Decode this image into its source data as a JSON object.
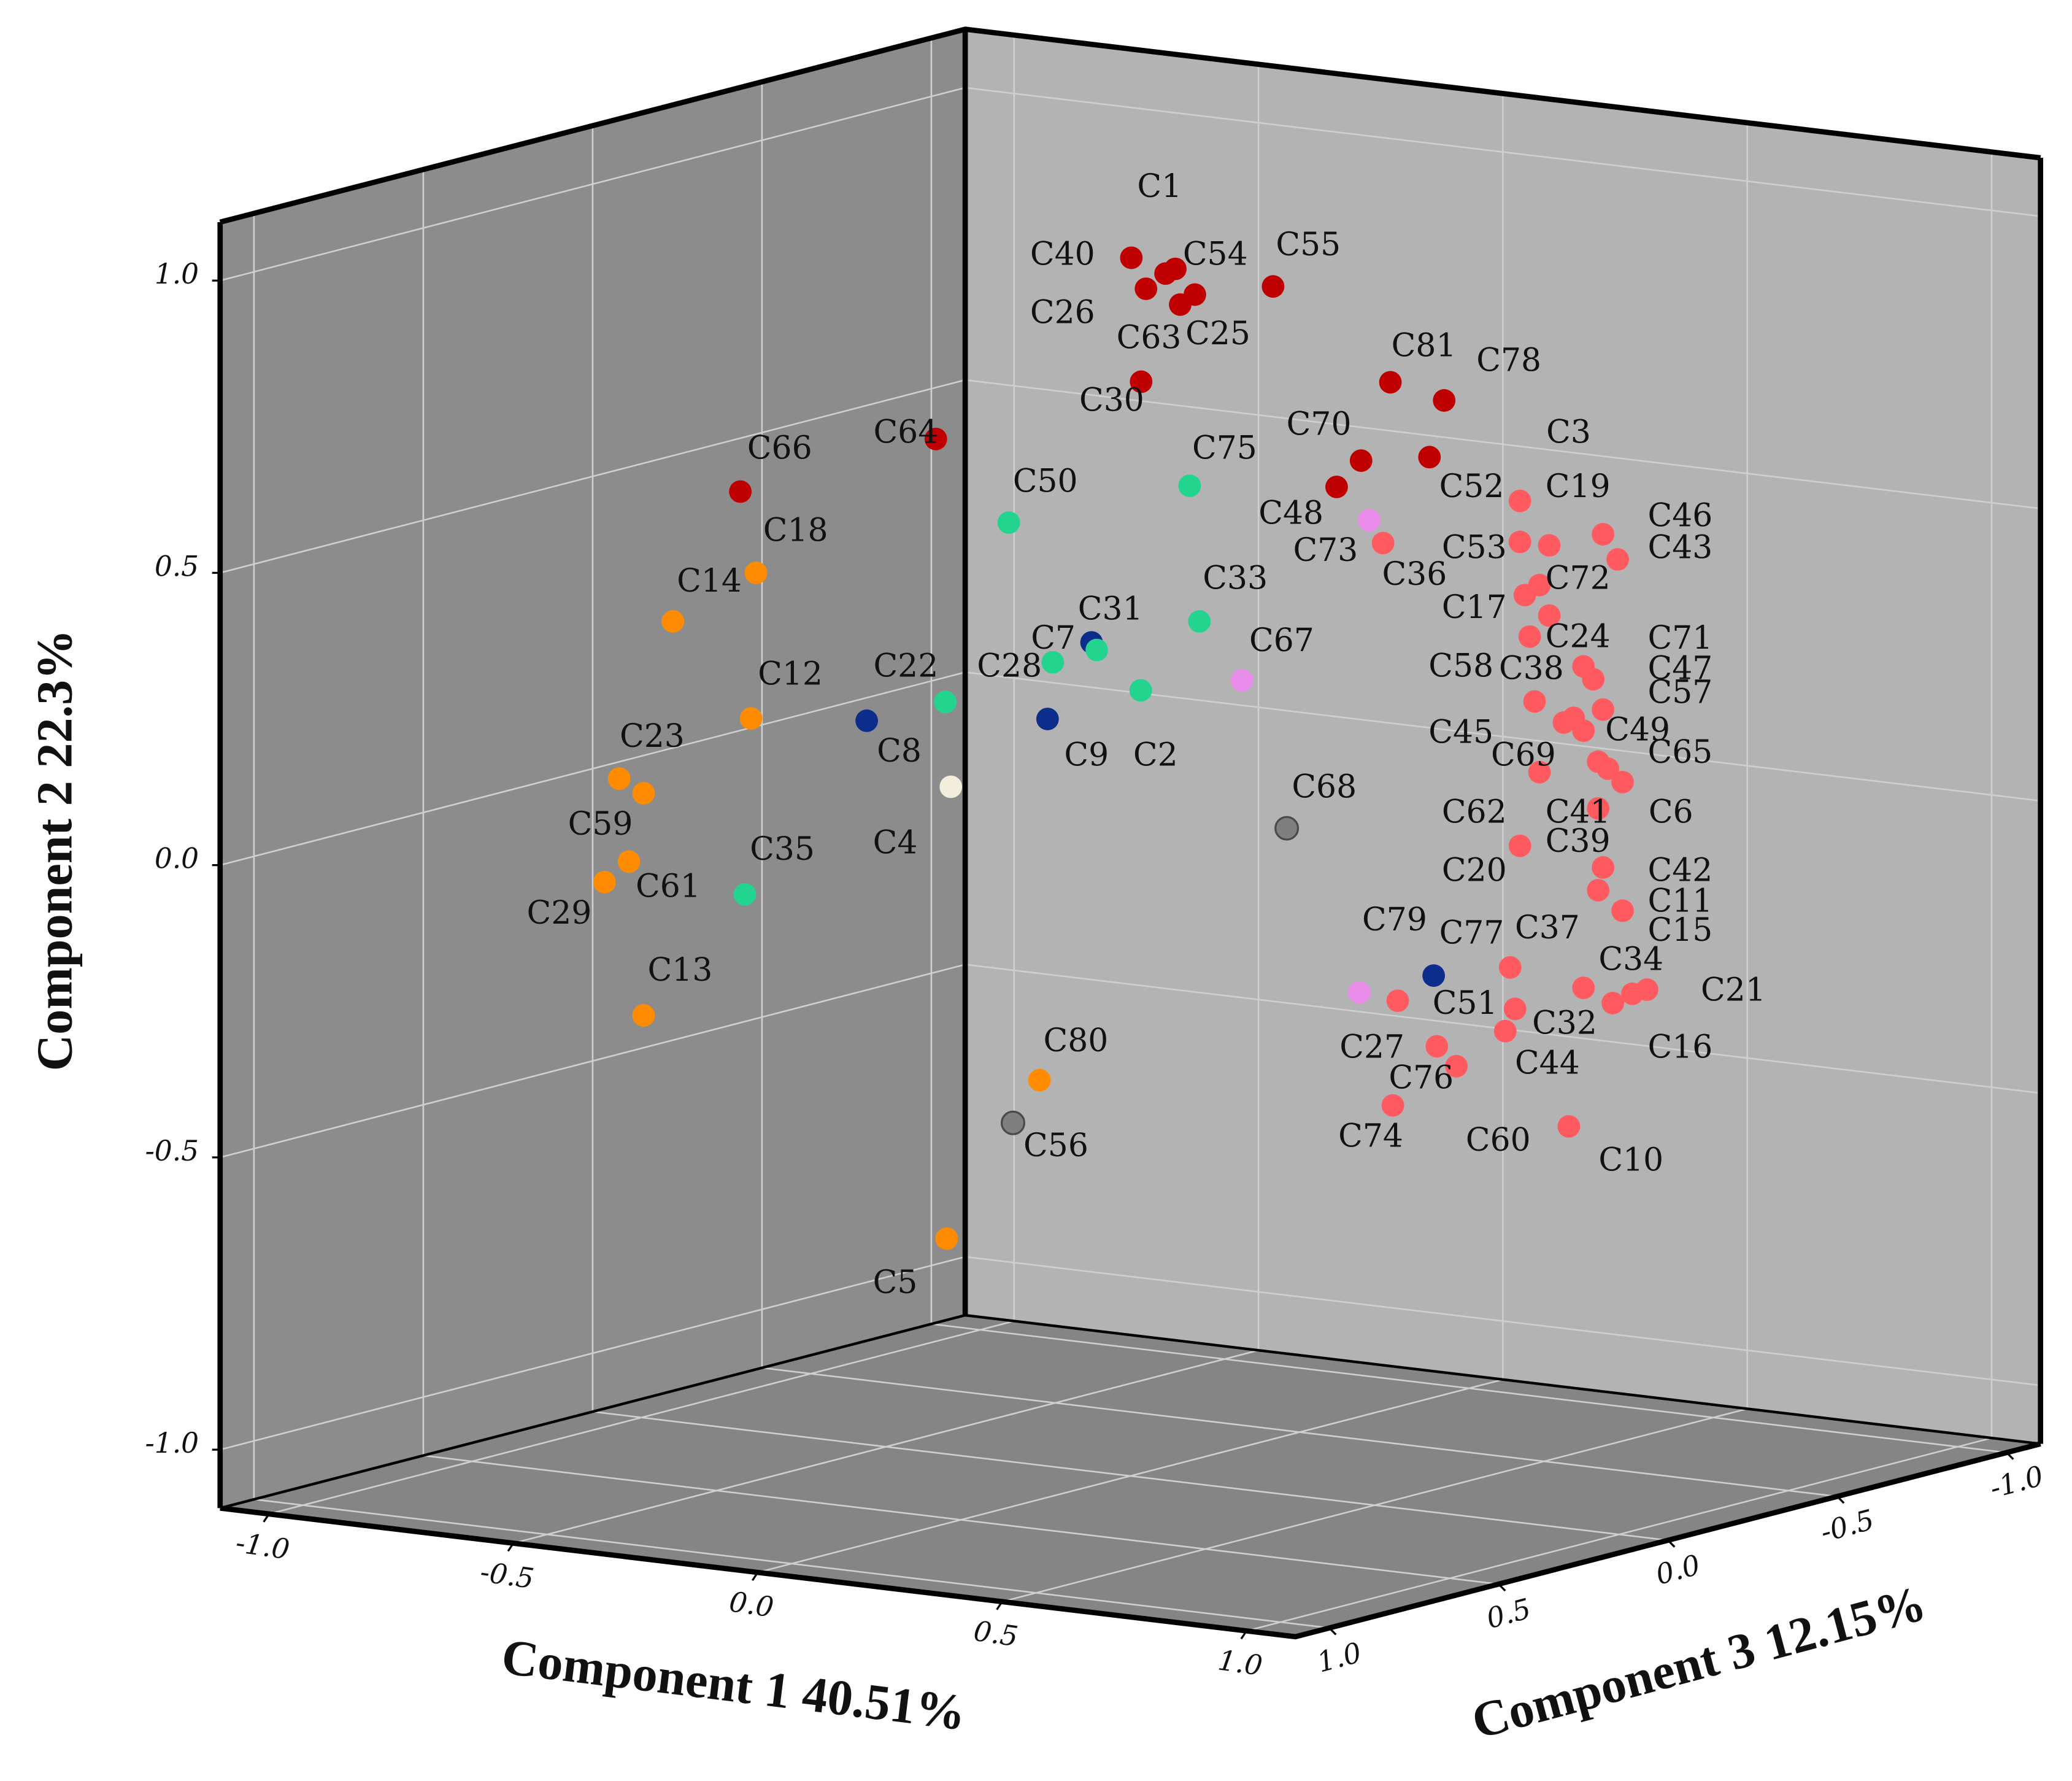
{
  "chart_data": {
    "type": "scatter3d",
    "xlabel": "Component 1 40.51%",
    "ylabel": "Component 2 22.3%",
    "zlabel": "Component 3 12.15%",
    "xlim": [
      -1.1,
      1.1
    ],
    "ylim": [
      -1.1,
      1.1
    ],
    "zlim": [
      -1.1,
      1.1
    ],
    "xticks": [
      {
        "value": -1,
        "label": "-1.0"
      },
      -0.5,
      {
        "value": 0,
        "label": "0.0"
      },
      0.5,
      {
        "value": 1,
        "label": "1.0"
      }
    ],
    "yticks": [
      {
        "value": -1,
        "label": "-1.0"
      },
      -0.5,
      {
        "value": 0,
        "label": "0.0"
      },
      0.5,
      {
        "value": 1,
        "label": "1.0"
      }
    ],
    "zticks": [
      {
        "value": -1,
        "label": "-1.0"
      },
      -0.5,
      {
        "value": 0,
        "label": "0.0"
      },
      0.5,
      {
        "value": 1,
        "label": "1.0"
      }
    ],
    "grid": true,
    "series": [
      {
        "color": "#c00000",
        "labels": [
          "C1",
          "C40",
          "C54",
          "C26",
          "C63",
          "C25",
          "C55",
          "C30",
          "C81",
          "C78",
          "C70",
          "C3",
          "C48",
          "C64",
          "C66"
        ],
        "x": [
          0.3,
          0.21,
          0.28,
          0.24,
          0.31,
          0.34,
          0.5,
          0.23,
          0.74,
          0.85,
          0.68,
          0.82,
          0.63,
          -0.19,
          -0.59
        ],
        "y": [
          1.04,
          1.05,
          1.03,
          1.0,
          0.98,
          1.0,
          1.03,
          0.84,
          0.89,
          0.87,
          0.75,
          0.77,
          0.7,
          0.7,
          0.57
        ],
        "z": [
          0.3,
          0.3,
          0.3,
          0.3,
          0.3,
          0.3,
          0.3,
          0.3,
          0.3,
          0.3,
          0.3,
          0.3,
          0.3,
          0.3,
          0.3
        ]
      },
      {
        "color": "#ff5a5f",
        "labels": [
          "C52",
          "C19",
          "C46",
          "C43",
          "C53",
          "C36",
          "C72",
          "C17",
          "C24",
          "C58",
          "C71",
          "C47",
          "C38",
          "C57",
          "C45",
          "C49",
          "C69",
          "C65",
          "C6",
          "C41",
          "C62",
          "C39",
          "C20",
          "C42",
          "C11",
          "C15",
          "C37",
          "C34",
          "C21",
          "C16",
          "C51",
          "C32",
          "C27",
          "C44",
          "C76",
          "C74",
          "C60",
          "C10"
        ],
        "x": [
          0.52,
          0.58,
          0.69,
          0.72,
          0.52,
          0.24,
          0.56,
          0.53,
          0.58,
          0.54,
          0.65,
          0.67,
          0.55,
          0.69,
          0.61,
          0.65,
          0.56,
          0.7,
          0.73,
          0.68,
          0.68,
          0.63,
          0.52,
          0.69,
          0.68,
          0.73,
          0.5,
          0.65,
          0.78,
          0.75,
          0.51,
          0.49,
          0.35,
          0.39,
          0.27,
          0.26,
          0.71,
          0.62
        ],
        "y": [
          0.56,
          0.49,
          0.52,
          0.48,
          0.49,
          0.46,
          0.42,
          0.4,
          0.37,
          0.33,
          0.29,
          0.27,
          0.22,
          0.22,
          0.19,
          0.18,
          0.1,
          0.12,
          0.1,
          0.05,
          0.13,
          0.2,
          -0.03,
          -0.05,
          -0.09,
          -0.12,
          -0.24,
          -0.26,
          -0.25,
          -0.26,
          -0.31,
          -0.35,
          -0.39,
          -0.42,
          -0.32,
          -0.5,
          -0.28,
          -0.5
        ],
        "z": [
          -0.4,
          -0.4,
          -0.4,
          -0.4,
          -0.4,
          -0.4,
          -0.4,
          -0.4,
          -0.4,
          -0.4,
          -0.4,
          -0.4,
          -0.4,
          -0.4,
          -0.4,
          -0.4,
          -0.4,
          -0.4,
          -0.4,
          -0.4,
          -0.4,
          -0.4,
          -0.4,
          -0.4,
          -0.4,
          -0.4,
          -0.4,
          -0.4,
          -0.4,
          -0.4,
          -0.4,
          -0.4,
          -0.4,
          -0.4,
          -0.4,
          -0.4,
          -0.4,
          -0.4
        ]
      },
      {
        "color": "#0d2d8c",
        "labels": [
          "C31",
          "C8",
          "C9",
          "C77"
        ],
        "x": [
          -0.01,
          -0.47,
          -0.1,
          0.69
        ],
        "y": [
          0.34,
          0.16,
          0.2,
          -0.16
        ],
        "z": [
          0.1,
          0.1,
          0.1,
          0.1
        ]
      },
      {
        "color": "#22d48e",
        "labels": [
          "C75",
          "C50",
          "C33",
          "C7",
          "C28",
          "C22",
          "C2",
          "C35"
        ],
        "x": [
          0.26,
          -0.11,
          0.28,
          -0.02,
          0.07,
          -0.24,
          0.16,
          -0.65
        ],
        "y": [
          0.65,
          0.55,
          0.42,
          0.32,
          0.35,
          0.23,
          0.29,
          -0.14
        ],
        "z": [
          0.2,
          0.2,
          0.2,
          0.2,
          0.2,
          0.2,
          0.2,
          0.2
        ]
      },
      {
        "color": "#ff8c00",
        "labels": [
          "C18",
          "C14",
          "C12",
          "C23",
          "C61",
          "C59",
          "C29",
          "C13",
          "C80",
          "C5"
        ],
        "x": [
          -0.35,
          -0.52,
          -0.36,
          -0.63,
          -0.58,
          -0.61,
          -0.66,
          -0.58,
          0.23,
          0.04
        ],
        "y": [
          0.5,
          0.4,
          0.25,
          0.12,
          0.1,
          -0.02,
          -0.06,
          -0.28,
          -0.31,
          -0.6
        ],
        "z": [
          0.6,
          0.6,
          0.6,
          0.6,
          0.6,
          0.6,
          0.6,
          0.6,
          0.6,
          0.6
        ]
      },
      {
        "color": "#7f7f7f",
        "labels": [
          "C68",
          "C56"
        ],
        "x": [
          0.32,
          -0.24
        ],
        "y": [
          0.04,
          -0.52
        ],
        "z": [
          0,
          0
        ]
      },
      {
        "color": "#f3eedc",
        "labels": [
          "C4"
        ],
        "x": [
          -0.09
        ],
        "y": [
          0.13
        ],
        "z": [
          0.4
        ]
      },
      {
        "color": "#e98be9",
        "labels": [
          "C67",
          "C79",
          "C73"
        ],
        "x": [
          0.09,
          0.33,
          0.35
        ],
        "y": [
          0.24,
          -0.27,
          0.54
        ],
        "z": [
          -0.2,
          -0.2,
          -0.2
        ]
      }
    ]
  }
}
